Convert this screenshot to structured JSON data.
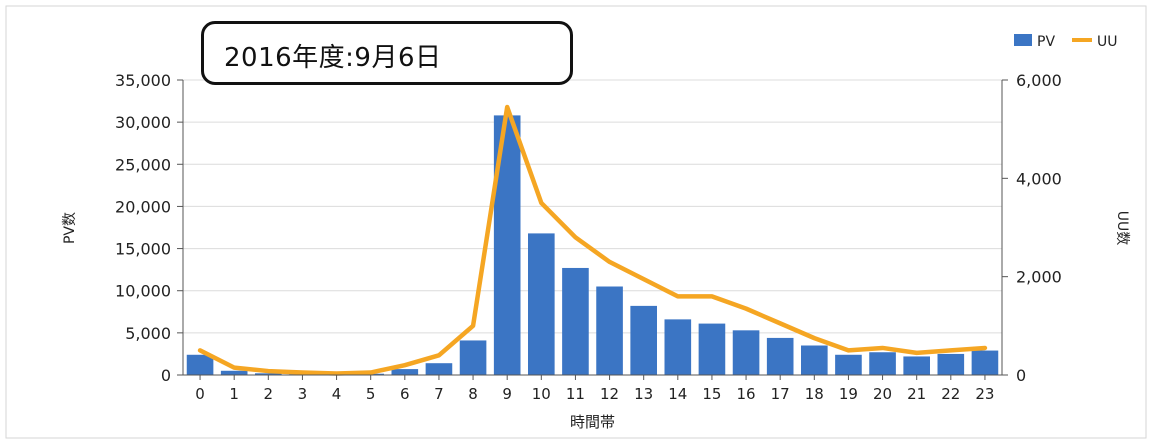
{
  "chart_data": {
    "type": "bar",
    "title": "2016年度:9月6日",
    "xlabel": "時間帯",
    "ylabel": "PV数",
    "y2label": "UU数",
    "categories": [
      "0",
      "1",
      "2",
      "3",
      "4",
      "5",
      "6",
      "7",
      "8",
      "9",
      "10",
      "11",
      "12",
      "13",
      "14",
      "15",
      "16",
      "17",
      "18",
      "19",
      "20",
      "21",
      "22",
      "23"
    ],
    "ylim": [
      0,
      35000
    ],
    "y_ticks": [
      "0",
      "5,000",
      "10,000",
      "15,000",
      "20,000",
      "25,000",
      "30,000",
      "35,000"
    ],
    "y2lim": [
      0,
      6000
    ],
    "y2_ticks": [
      "0",
      "2,000",
      "4,000",
      "6,000"
    ],
    "grid": true,
    "legend_position": "top-right",
    "series": [
      {
        "name": "PV",
        "type": "bar",
        "axis": "left",
        "color": "#3b75c4",
        "values": [
          2400,
          500,
          200,
          100,
          100,
          150,
          700,
          1400,
          4100,
          30800,
          16800,
          12700,
          10500,
          8200,
          6600,
          6100,
          5300,
          4400,
          3500,
          2400,
          2700,
          2200,
          2500,
          2900
        ]
      },
      {
        "name": "UU",
        "type": "line",
        "axis": "right",
        "color": "#f5a623",
        "values": [
          500,
          150,
          80,
          50,
          30,
          50,
          200,
          400,
          1000,
          5450,
          3500,
          2800,
          2300,
          1950,
          1600,
          1600,
          1350,
          1050,
          750,
          500,
          550,
          450,
          500,
          550
        ]
      }
    ]
  }
}
